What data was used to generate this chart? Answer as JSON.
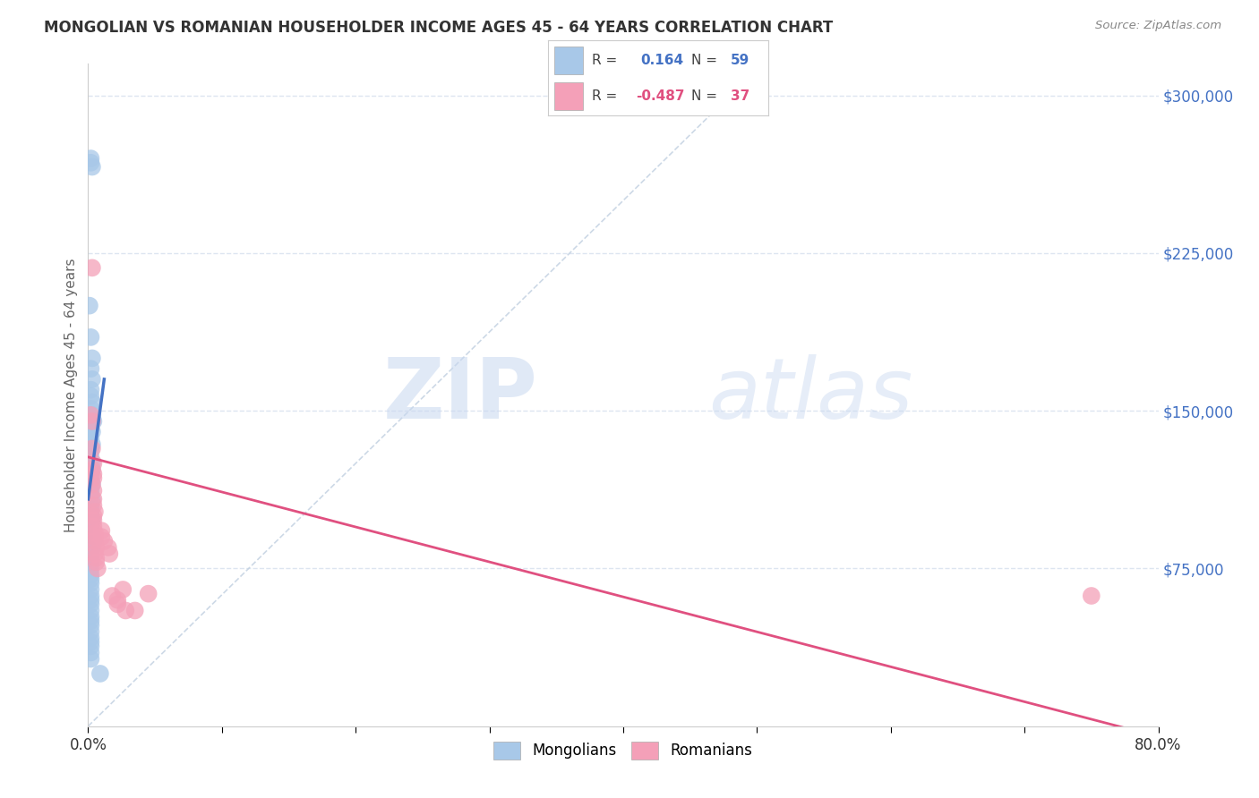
{
  "title": "MONGOLIAN VS ROMANIAN HOUSEHOLDER INCOME AGES 45 - 64 YEARS CORRELATION CHART",
  "source": "Source: ZipAtlas.com",
  "ylabel": "Householder Income Ages 45 - 64 years",
  "x_min": 0.0,
  "x_max": 0.8,
  "y_min": 0,
  "y_max": 315000,
  "x_ticks": [
    0.0,
    0.1,
    0.2,
    0.3,
    0.4,
    0.5,
    0.6,
    0.7,
    0.8
  ],
  "x_tick_labels": [
    "0.0%",
    "",
    "",
    "",
    "",
    "",
    "",
    "",
    "80.0%"
  ],
  "y_ticks": [
    75000,
    150000,
    225000,
    300000
  ],
  "y_tick_labels": [
    "$75,000",
    "$150,000",
    "$225,000",
    "$300,000"
  ],
  "mongolian_R": 0.164,
  "mongolian_N": 59,
  "romanian_R": -0.487,
  "romanian_N": 37,
  "mongolian_color": "#a8c8e8",
  "mongolian_line_color": "#4472c4",
  "romanian_color": "#f4a0b8",
  "romanian_line_color": "#e05080",
  "diagonal_color": "#c0cfe0",
  "background_color": "#ffffff",
  "grid_color": "#dde5f0",
  "watermark_zip": "ZIP",
  "watermark_atlas": "atlas",
  "mongolian_x": [
    0.002,
    0.002,
    0.003,
    0.001,
    0.002,
    0.003,
    0.002,
    0.003,
    0.002,
    0.002,
    0.003,
    0.002,
    0.003,
    0.004,
    0.002,
    0.003,
    0.002,
    0.003,
    0.002,
    0.002,
    0.003,
    0.003,
    0.002,
    0.002,
    0.003,
    0.002,
    0.002,
    0.003,
    0.002,
    0.002,
    0.002,
    0.003,
    0.002,
    0.002,
    0.003,
    0.004,
    0.003,
    0.002,
    0.002,
    0.002,
    0.002,
    0.002,
    0.002,
    0.002,
    0.002,
    0.002,
    0.002,
    0.002,
    0.002,
    0.002,
    0.002,
    0.002,
    0.002,
    0.002,
    0.002,
    0.002,
    0.002,
    0.002,
    0.009
  ],
  "mongolian_y": [
    270000,
    268000,
    266000,
    200000,
    185000,
    175000,
    170000,
    165000,
    160000,
    157000,
    154000,
    151000,
    148000,
    145000,
    142000,
    140000,
    137000,
    134000,
    131000,
    128000,
    125000,
    122000,
    120000,
    117000,
    115000,
    112000,
    110000,
    108000,
    105000,
    103000,
    100000,
    98000,
    95000,
    92000,
    90000,
    88000,
    85000,
    82000,
    80000,
    78000,
    75000,
    72000,
    70000,
    68000,
    65000,
    62000,
    60000,
    58000,
    55000,
    52000,
    50000,
    48000,
    45000,
    42000,
    40000,
    38000,
    35000,
    32000,
    25000
  ],
  "romanian_x": [
    0.003,
    0.002,
    0.003,
    0.003,
    0.004,
    0.003,
    0.004,
    0.004,
    0.003,
    0.004,
    0.004,
    0.004,
    0.005,
    0.004,
    0.004,
    0.004,
    0.005,
    0.005,
    0.005,
    0.006,
    0.005,
    0.006,
    0.006,
    0.007,
    0.01,
    0.01,
    0.012,
    0.015,
    0.016,
    0.018,
    0.022,
    0.022,
    0.026,
    0.028,
    0.035,
    0.045,
    0.75
  ],
  "romanian_y": [
    218000,
    148000,
    145000,
    132000,
    125000,
    122000,
    120000,
    118000,
    115000,
    112000,
    108000,
    105000,
    102000,
    100000,
    98000,
    95000,
    92000,
    90000,
    88000,
    85000,
    82000,
    80000,
    78000,
    75000,
    93000,
    90000,
    88000,
    85000,
    82000,
    62000,
    60000,
    58000,
    65000,
    55000,
    55000,
    63000,
    62000
  ],
  "mongolian_line_x": [
    0.0,
    0.012
  ],
  "mongolian_line_y": [
    108000,
    165000
  ],
  "romanian_line_x": [
    0.0,
    0.8
  ],
  "romanian_line_y": [
    128000,
    -5000
  ]
}
